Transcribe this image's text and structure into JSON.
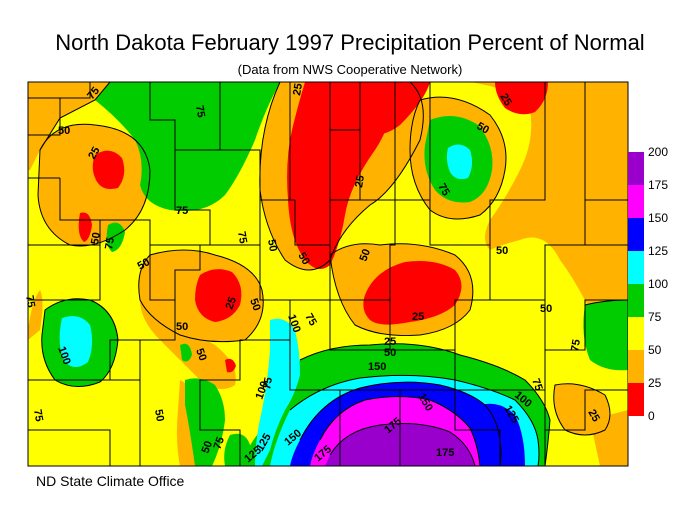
{
  "map": {
    "title": "North Dakota February 1997 Precipitation Percent of Normal",
    "subtitle": "(Data from NWS Cooperative Network)",
    "footer": "ND State Climate Office",
    "legend": [
      {
        "label": "200",
        "color": "#9900cc"
      },
      {
        "label": "175",
        "color": "#ff00ff"
      },
      {
        "label": "150",
        "color": "#0000ff"
      },
      {
        "label": "125",
        "color": "#00ffff"
      },
      {
        "label": "100",
        "color": "#00cc00"
      },
      {
        "label": "75",
        "color": "#ffff00"
      },
      {
        "label": "50",
        "color": "#ffb300"
      },
      {
        "label": "25",
        "color": "#ff0000"
      },
      {
        "label": "0",
        "color": ""
      }
    ],
    "contour_labels": [
      "75",
      "75",
      "50",
      "25",
      "25",
      "25",
      "50",
      "75",
      "50",
      "75",
      "75",
      "50",
      "75",
      "25",
      "50",
      "50",
      "50",
      "25",
      "25",
      "50",
      "100",
      "75",
      "75",
      "100",
      "125",
      "150",
      "175",
      "175",
      "175",
      "150",
      "125",
      "100",
      "75",
      "75",
      "75",
      "50",
      "75",
      "50",
      "100",
      "125",
      "150",
      "25",
      "50",
      "25",
      "50",
      "50",
      "50",
      "75",
      "50"
    ]
  }
}
